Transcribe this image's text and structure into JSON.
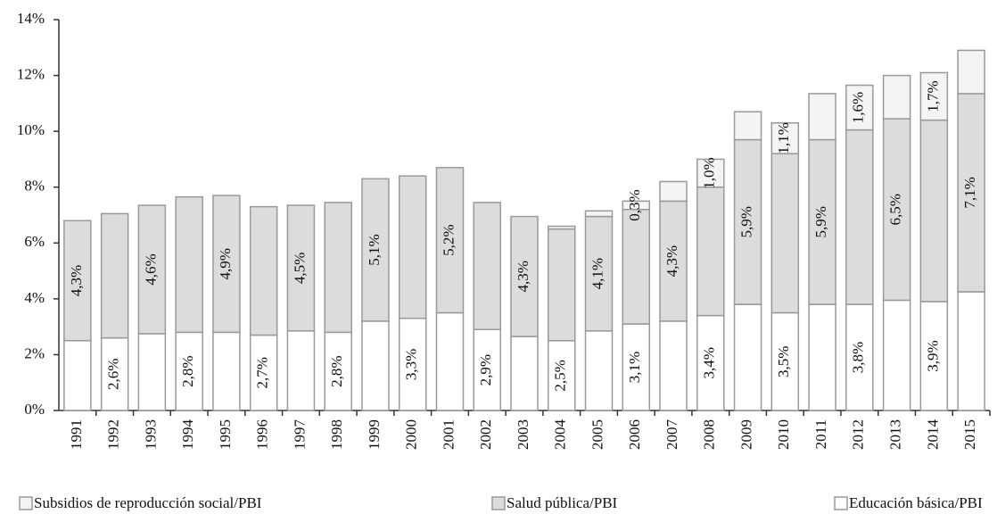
{
  "chart_data": {
    "type": "stacked-bar",
    "categories": [
      "1991",
      "1992",
      "1993",
      "1994",
      "1995",
      "1996",
      "1997",
      "1998",
      "1999",
      "2000",
      "2001",
      "2002",
      "2003",
      "2004",
      "2005",
      "2006",
      "2007",
      "2008",
      "2009",
      "2010",
      "2011",
      "2012",
      "2013",
      "2014",
      "2015"
    ],
    "series": [
      {
        "name": "Subsidios de reproducción social/PBI",
        "color": "#f4f4f4",
        "values": [
          0,
          0,
          0,
          0,
          0,
          0,
          0,
          0,
          0,
          0,
          0,
          0,
          0,
          0.1,
          0.2,
          0.3,
          0.7,
          1.0,
          1.0,
          1.1,
          1.65,
          1.6,
          1.55,
          1.7,
          1.55
        ],
        "value_labels": [
          null,
          null,
          null,
          null,
          null,
          null,
          null,
          null,
          null,
          null,
          null,
          null,
          null,
          null,
          null,
          "0,3%",
          null,
          "1,0%",
          null,
          "1,1%",
          null,
          "1,6%",
          null,
          "1,7%",
          null
        ]
      },
      {
        "name": "Salud pública/PBI",
        "color": "#dcdcdc",
        "values": [
          4.3,
          4.45,
          4.6,
          4.85,
          4.9,
          4.6,
          4.5,
          4.65,
          5.1,
          5.1,
          5.2,
          4.55,
          4.3,
          4.0,
          4.1,
          4.1,
          4.3,
          4.6,
          5.9,
          5.7,
          5.9,
          6.25,
          6.5,
          6.5,
          7.1
        ],
        "value_labels": [
          "4,3%",
          null,
          "4,6%",
          null,
          "4,9%",
          null,
          "4,5%",
          null,
          "5,1%",
          null,
          "5,2%",
          null,
          "4,3%",
          null,
          "4,1%",
          null,
          "4,3%",
          null,
          "5,9%",
          null,
          "5,9%",
          null,
          "6,5%",
          null,
          "7,1%"
        ]
      },
      {
        "name": "Educación básica/PBI",
        "color": "#ffffff",
        "values": [
          2.5,
          2.6,
          2.75,
          2.8,
          2.8,
          2.7,
          2.85,
          2.8,
          3.2,
          3.3,
          3.5,
          2.9,
          2.65,
          2.5,
          2.85,
          3.1,
          3.2,
          3.4,
          3.8,
          3.5,
          3.8,
          3.8,
          3.95,
          3.9,
          4.25
        ],
        "value_labels": [
          null,
          "2,6%",
          null,
          "2,8%",
          null,
          "2,7%",
          null,
          "2,8%",
          null,
          "3,3%",
          null,
          "2,9%",
          null,
          "2,5%",
          null,
          "3,1%",
          null,
          "3,4%",
          null,
          "3,5%",
          null,
          "3,8%",
          null,
          "3,9%",
          null
        ]
      }
    ],
    "ylim": [
      0,
      14
    ],
    "yticks": [
      {
        "value": 0,
        "label": "0%"
      },
      {
        "value": 2,
        "label": "2%"
      },
      {
        "value": 4,
        "label": "4%"
      },
      {
        "value": 6,
        "label": "6%"
      },
      {
        "value": 8,
        "label": "8%"
      },
      {
        "value": 10,
        "label": "10%"
      },
      {
        "value": 12,
        "label": "12%"
      },
      {
        "value": 14,
        "label": "14%"
      }
    ],
    "grid": false
  }
}
